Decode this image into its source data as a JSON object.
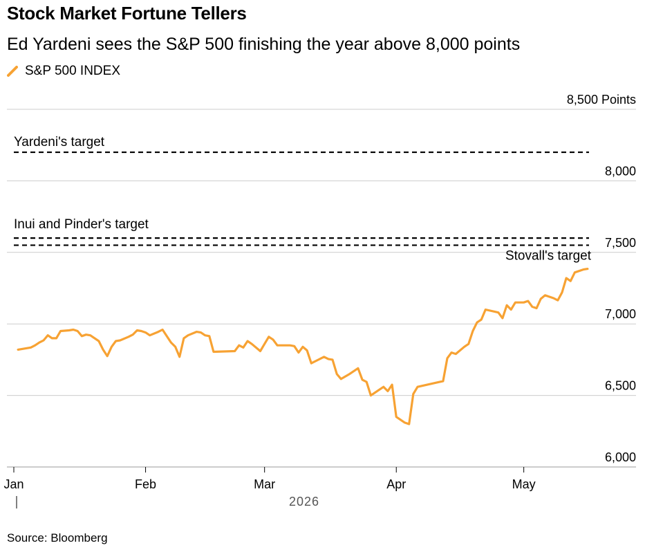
{
  "header": {
    "title": "Stock Market Fortune Tellers",
    "subtitle": "Ed Yardeni sees the S&P 500 finishing the year above 8,000 points"
  },
  "legend": {
    "series_label": "S&P 500 INDEX"
  },
  "footer": {
    "source": "Source: Bloomberg"
  },
  "colors": {
    "series": "#f7a233",
    "grid": "#cccccc",
    "target_line": "#000000"
  },
  "chart_data": {
    "type": "line",
    "title": "Stock Market Fortune Tellers",
    "subtitle": "Ed Yardeni sees the S&P 500 finishing the year above 8,000 points",
    "ylim": [
      6000,
      8500
    ],
    "yticks": [
      {
        "value": 6000,
        "label": "6,000"
      },
      {
        "value": 6500,
        "label": "6,500"
      },
      {
        "value": 7000,
        "label": "7,000"
      },
      {
        "value": 7500,
        "label": "7,500"
      },
      {
        "value": 8000,
        "label": "8,000"
      },
      {
        "value": 8500,
        "label": "8,500 Points"
      }
    ],
    "xticks": [
      {
        "date": "2026-01-01",
        "label": "Jan"
      },
      {
        "date": "2026-02-01",
        "label": "Feb"
      },
      {
        "date": "2026-03-01",
        "label": "Mar"
      },
      {
        "date": "2026-04-01",
        "label": "Apr"
      },
      {
        "date": "2026-05-01",
        "label": "May"
      }
    ],
    "x_year_label": "2026",
    "grid": true,
    "legend_position": "top-left",
    "targets": [
      {
        "label": "Yardeni's target",
        "value": 8200
      },
      {
        "label": "Inui and Pinder's target",
        "value": 7600
      },
      {
        "label": "Stovall's target",
        "value": 7550
      }
    ],
    "series": [
      {
        "name": "S&P 500 INDEX",
        "points": [
          [
            "2026-01-02",
            6820
          ],
          [
            "2026-01-05",
            6835
          ],
          [
            "2026-01-06",
            6850
          ],
          [
            "2026-01-07",
            6870
          ],
          [
            "2026-01-08",
            6885
          ],
          [
            "2026-01-09",
            6920
          ],
          [
            "2026-01-10",
            6900
          ],
          [
            "2026-01-11",
            6900
          ],
          [
            "2026-01-12",
            6950
          ],
          [
            "2026-01-14",
            6955
          ],
          [
            "2026-01-15",
            6960
          ],
          [
            "2026-01-16",
            6950
          ],
          [
            "2026-01-17",
            6915
          ],
          [
            "2026-01-18",
            6925
          ],
          [
            "2026-01-19",
            6920
          ],
          [
            "2026-01-21",
            6880
          ],
          [
            "2026-01-22",
            6820
          ],
          [
            "2026-01-23",
            6775
          ],
          [
            "2026-01-24",
            6840
          ],
          [
            "2026-01-25",
            6880
          ],
          [
            "2026-01-26",
            6885
          ],
          [
            "2026-01-28",
            6910
          ],
          [
            "2026-01-29",
            6925
          ],
          [
            "2026-01-30",
            6955
          ],
          [
            "2026-01-31",
            6950
          ],
          [
            "2026-02-01",
            6940
          ],
          [
            "2026-02-02",
            6920
          ],
          [
            "2026-02-04",
            6945
          ],
          [
            "2026-02-05",
            6960
          ],
          [
            "2026-02-07",
            6870
          ],
          [
            "2026-02-08",
            6840
          ],
          [
            "2026-02-09",
            6770
          ],
          [
            "2026-02-10",
            6900
          ],
          [
            "2026-02-11",
            6920
          ],
          [
            "2026-02-13",
            6945
          ],
          [
            "2026-02-14",
            6940
          ],
          [
            "2026-02-15",
            6920
          ],
          [
            "2026-02-16",
            6915
          ],
          [
            "2026-02-17",
            6805
          ],
          [
            "2026-02-22",
            6810
          ],
          [
            "2026-02-23",
            6850
          ],
          [
            "2026-02-24",
            6835
          ],
          [
            "2026-02-25",
            6880
          ],
          [
            "2026-02-26",
            6860
          ],
          [
            "2026-02-28",
            6810
          ],
          [
            "2026-03-02",
            6910
          ],
          [
            "2026-03-03",
            6890
          ],
          [
            "2026-03-04",
            6850
          ],
          [
            "2026-03-07",
            6850
          ],
          [
            "2026-03-08",
            6845
          ],
          [
            "2026-03-09",
            6800
          ],
          [
            "2026-03-10",
            6840
          ],
          [
            "2026-03-11",
            6815
          ],
          [
            "2026-03-12",
            6725
          ],
          [
            "2026-03-13",
            6740
          ],
          [
            "2026-03-15",
            6770
          ],
          [
            "2026-03-16",
            6755
          ],
          [
            "2026-03-17",
            6750
          ],
          [
            "2026-03-18",
            6650
          ],
          [
            "2026-03-19",
            6615
          ],
          [
            "2026-03-21",
            6650
          ],
          [
            "2026-03-22",
            6670
          ],
          [
            "2026-03-23",
            6690
          ],
          [
            "2026-03-24",
            6610
          ],
          [
            "2026-03-25",
            6595
          ],
          [
            "2026-03-26",
            6500
          ],
          [
            "2026-03-28",
            6540
          ],
          [
            "2026-03-29",
            6560
          ],
          [
            "2026-03-30",
            6530
          ],
          [
            "2026-03-31",
            6575
          ],
          [
            "2026-04-01",
            6350
          ],
          [
            "2026-04-03",
            6310
          ],
          [
            "2026-04-04",
            6300
          ],
          [
            "2026-04-05",
            6510
          ],
          [
            "2026-04-06",
            6560
          ],
          [
            "2026-04-12",
            6600
          ],
          [
            "2026-04-13",
            6760
          ],
          [
            "2026-04-14",
            6800
          ],
          [
            "2026-04-15",
            6790
          ],
          [
            "2026-04-17",
            6840
          ],
          [
            "2026-04-18",
            6860
          ],
          [
            "2026-04-19",
            6950
          ],
          [
            "2026-04-20",
            7010
          ],
          [
            "2026-04-21",
            7030
          ],
          [
            "2026-04-22",
            7100
          ],
          [
            "2026-04-25",
            7080
          ],
          [
            "2026-04-26",
            7040
          ],
          [
            "2026-04-27",
            7130
          ],
          [
            "2026-04-28",
            7100
          ],
          [
            "2026-04-29",
            7150
          ],
          [
            "2026-05-01",
            7150
          ],
          [
            "2026-05-02",
            7160
          ],
          [
            "2026-05-03",
            7120
          ],
          [
            "2026-05-04",
            7110
          ],
          [
            "2026-05-05",
            7175
          ],
          [
            "2026-05-06",
            7200
          ],
          [
            "2026-05-07",
            7190
          ],
          [
            "2026-05-08",
            7180
          ],
          [
            "2026-05-09",
            7165
          ],
          [
            "2026-05-10",
            7220
          ],
          [
            "2026-05-11",
            7320
          ],
          [
            "2026-05-12",
            7300
          ],
          [
            "2026-05-13",
            7360
          ],
          [
            "2026-05-15",
            7380
          ],
          [
            "2026-05-16",
            7385
          ]
        ]
      }
    ]
  }
}
